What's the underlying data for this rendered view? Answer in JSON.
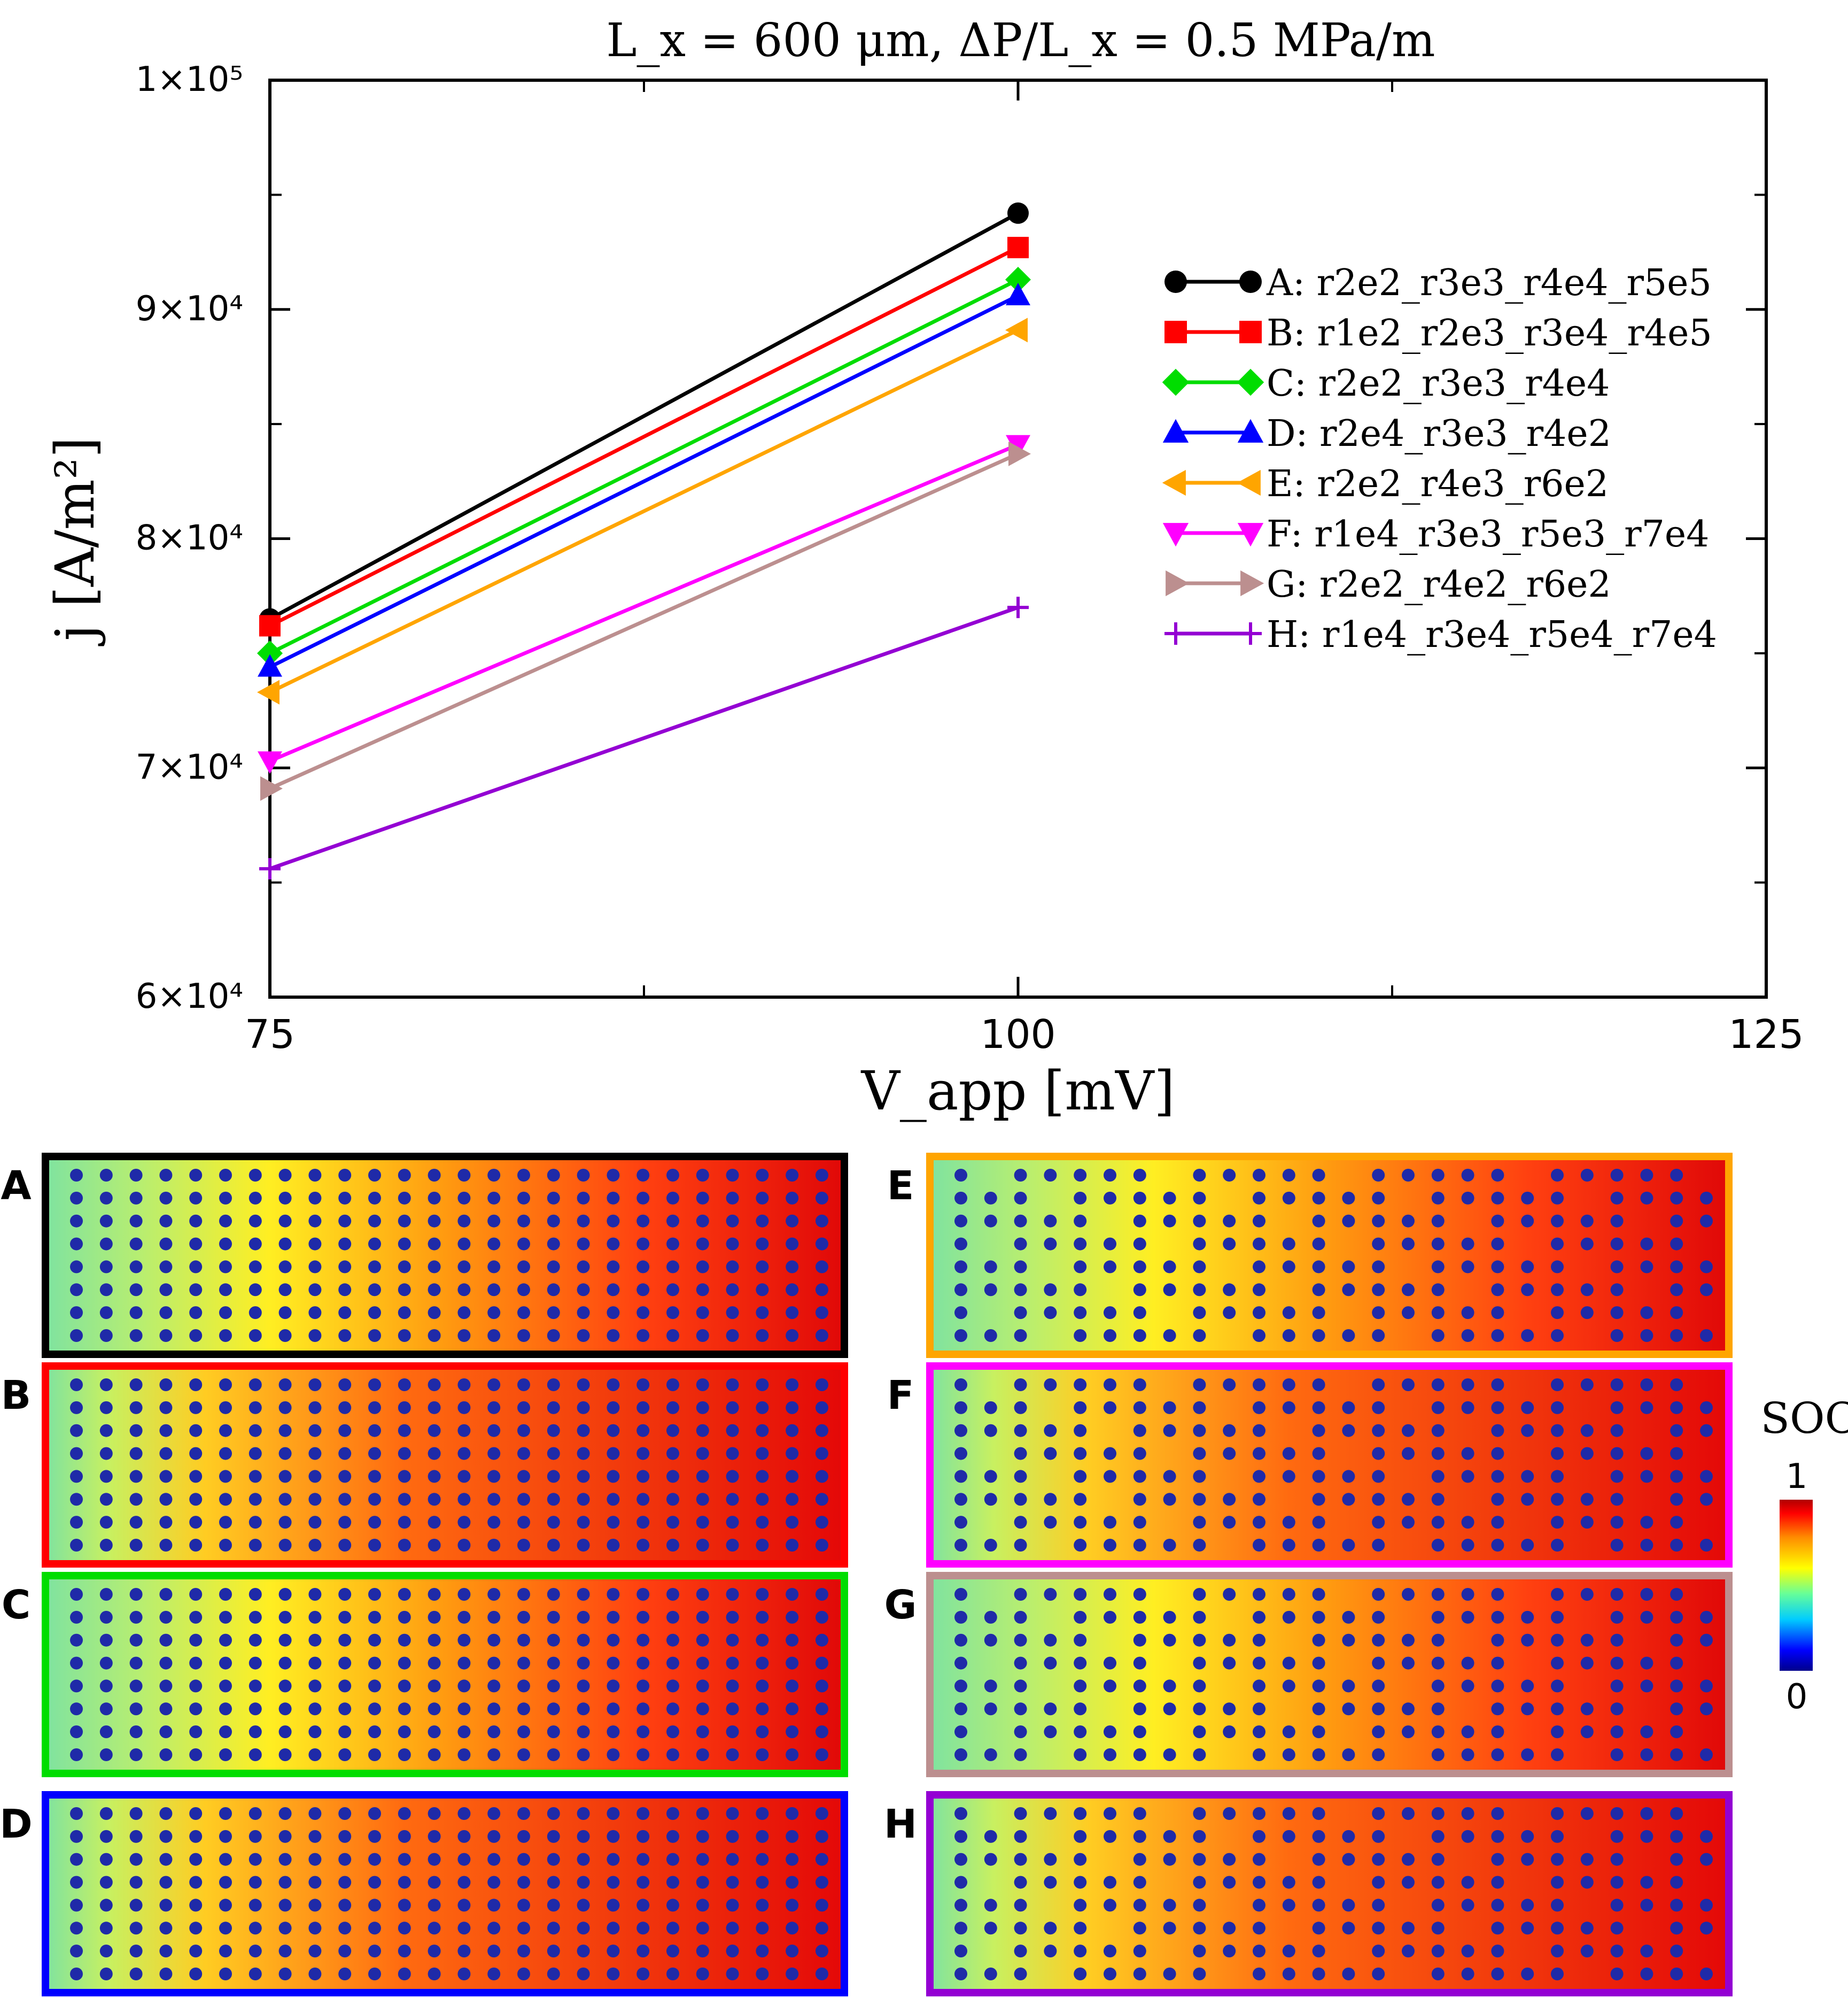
{
  "chart_data": {
    "type": "line",
    "title": "L_x = 600 μm, ΔP/L_x = 0.5 MPa/m",
    "xlabel": "V_app [mV]",
    "ylabel": "j [A/m²]",
    "xlim": [
      75,
      125
    ],
    "ylim": [
      60000,
      100000
    ],
    "x_ticks": [
      {
        "value": 75,
        "label": "75"
      },
      {
        "value": 100,
        "label": "100"
      },
      {
        "value": 125,
        "label": "125"
      }
    ],
    "x_minor_ticks": [
      87.5,
      112.5
    ],
    "y_ticks": [
      {
        "value": 60000,
        "label": "6×10⁴"
      },
      {
        "value": 70000,
        "label": "7×10⁴"
      },
      {
        "value": 80000,
        "label": "8×10⁴"
      },
      {
        "value": 90000,
        "label": "9×10⁴"
      },
      {
        "value": 100000,
        "label": "1×10⁵"
      }
    ],
    "y_minor_ticks": [
      65000,
      75000,
      85000,
      95000
    ],
    "legend_position": "top-right",
    "series": [
      {
        "name": "A: r2e2_r3e3_r4e4_r5e5",
        "x": [
          75,
          100
        ],
        "values": [
          76500,
          94200
        ],
        "color": "#000000",
        "marker": "circle"
      },
      {
        "name": "B: r1e2_r2e3_r3e4_r4e5",
        "x": [
          75,
          100
        ],
        "values": [
          76200,
          92700
        ],
        "color": "#ff0000",
        "marker": "square"
      },
      {
        "name": "C: r2e2_r3e3_r4e4",
        "x": [
          75,
          100
        ],
        "values": [
          75000,
          91300
        ],
        "color": "#00dd00",
        "marker": "diamond"
      },
      {
        "name": "D: r2e4_r3e3_r4e2",
        "x": [
          75,
          100
        ],
        "values": [
          74400,
          90600
        ],
        "color": "#0000ff",
        "marker": "triangle-up"
      },
      {
        "name": "E: r2e2_r4e3_r6e2",
        "x": [
          75,
          100
        ],
        "values": [
          73300,
          89100
        ],
        "color": "#ffa500",
        "marker": "triangle-left"
      },
      {
        "name": "F: r1e4_r3e3_r5e3_r7e4",
        "x": [
          75,
          100
        ],
        "values": [
          70300,
          84100
        ],
        "color": "#ff00ff",
        "marker": "triangle-down"
      },
      {
        "name": "G: r2e2_r4e2_r6e2",
        "x": [
          75,
          100
        ],
        "values": [
          69100,
          83700
        ],
        "color": "#bc8f8f",
        "marker": "triangle-right"
      },
      {
        "name": "H: r1e4_r3e4_r5e4_r7e4",
        "x": [
          75,
          100
        ],
        "values": [
          65600,
          77000
        ],
        "color": "#9400d3",
        "marker": "plus"
      }
    ]
  },
  "panels": [
    {
      "label": "A",
      "color": "#000000",
      "rows": 8
    },
    {
      "label": "B",
      "color": "#ff0000",
      "rows": 8
    },
    {
      "label": "C",
      "color": "#00dd00",
      "rows": 8
    },
    {
      "label": "D",
      "color": "#0000ff",
      "rows": 8
    },
    {
      "label": "E",
      "color": "#ffa500",
      "rows": 8
    },
    {
      "label": "F",
      "color": "#ff00ff",
      "rows": 8
    },
    {
      "label": "G",
      "color": "#bc8f8f",
      "rows": 8
    },
    {
      "label": "H",
      "color": "#9400d3",
      "rows": 8
    }
  ],
  "colorbar": {
    "title": "SOC",
    "max_label": "1",
    "min_label": "0"
  }
}
